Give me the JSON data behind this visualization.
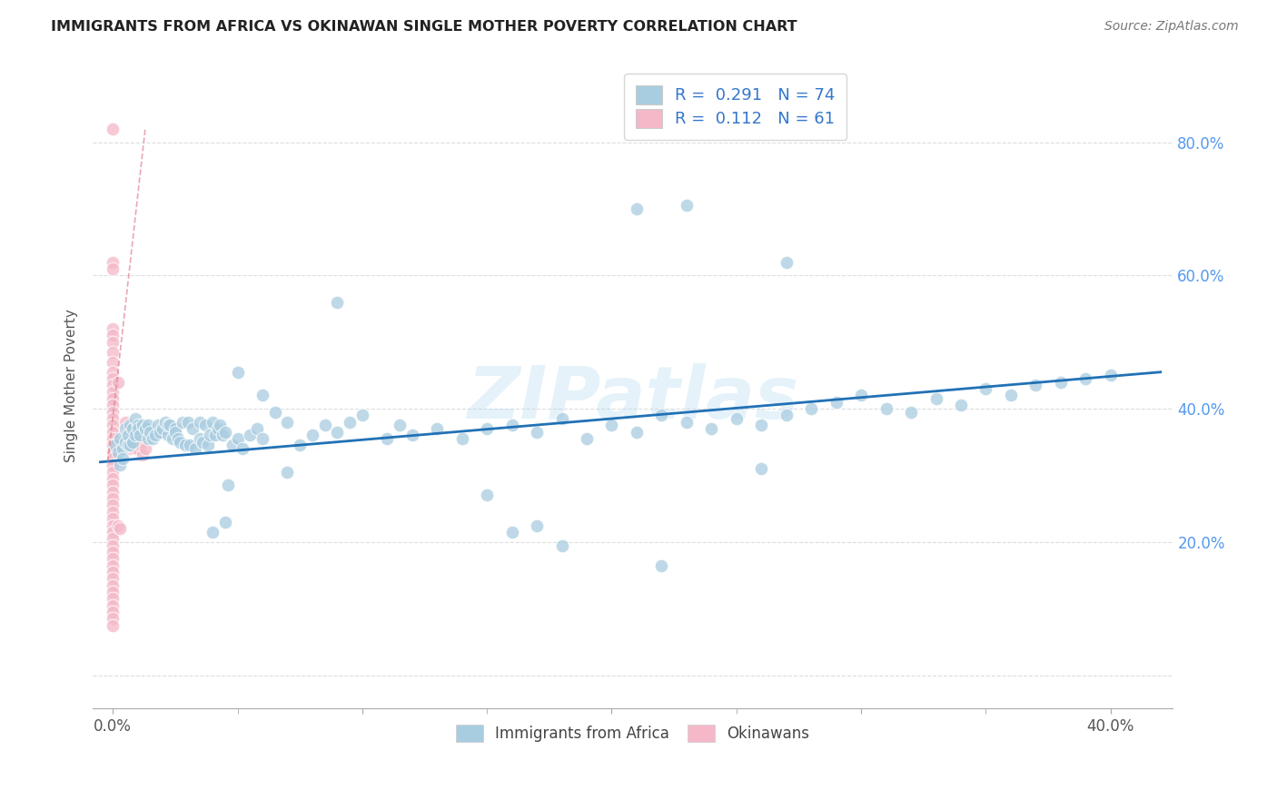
{
  "title": "IMMIGRANTS FROM AFRICA VS OKINAWAN SINGLE MOTHER POVERTY CORRELATION CHART",
  "source": "Source: ZipAtlas.com",
  "ylabel": "Single Mother Poverty",
  "blue_color": "#a8cce0",
  "pink_color": "#f4b8c8",
  "trendline_blue": "#2171b5",
  "trendline_pink": "#e08090",
  "watermark": "ZIPatlas",
  "blue_scatter": [
    [
      0.001,
      0.345
    ],
    [
      0.002,
      0.335
    ],
    [
      0.003,
      0.355
    ],
    [
      0.003,
      0.315
    ],
    [
      0.004,
      0.34
    ],
    [
      0.004,
      0.325
    ],
    [
      0.005,
      0.37
    ],
    [
      0.005,
      0.35
    ],
    [
      0.006,
      0.345
    ],
    [
      0.006,
      0.36
    ],
    [
      0.007,
      0.375
    ],
    [
      0.007,
      0.345
    ],
    [
      0.008,
      0.35
    ],
    [
      0.008,
      0.37
    ],
    [
      0.009,
      0.36
    ],
    [
      0.009,
      0.385
    ],
    [
      0.01,
      0.375
    ],
    [
      0.01,
      0.37
    ],
    [
      0.011,
      0.36
    ],
    [
      0.012,
      0.375
    ],
    [
      0.013,
      0.37
    ],
    [
      0.014,
      0.355
    ],
    [
      0.014,
      0.375
    ],
    [
      0.015,
      0.365
    ],
    [
      0.016,
      0.355
    ],
    [
      0.017,
      0.36
    ],
    [
      0.018,
      0.375
    ],
    [
      0.019,
      0.365
    ],
    [
      0.02,
      0.37
    ],
    [
      0.021,
      0.38
    ],
    [
      0.022,
      0.36
    ],
    [
      0.022,
      0.375
    ],
    [
      0.023,
      0.375
    ],
    [
      0.024,
      0.355
    ],
    [
      0.025,
      0.37
    ],
    [
      0.025,
      0.365
    ],
    [
      0.026,
      0.355
    ],
    [
      0.027,
      0.35
    ],
    [
      0.028,
      0.38
    ],
    [
      0.029,
      0.345
    ],
    [
      0.03,
      0.38
    ],
    [
      0.031,
      0.345
    ],
    [
      0.032,
      0.37
    ],
    [
      0.033,
      0.34
    ],
    [
      0.035,
      0.355
    ],
    [
      0.035,
      0.38
    ],
    [
      0.036,
      0.35
    ],
    [
      0.037,
      0.375
    ],
    [
      0.038,
      0.345
    ],
    [
      0.039,
      0.36
    ],
    [
      0.04,
      0.38
    ],
    [
      0.041,
      0.36
    ],
    [
      0.042,
      0.37
    ],
    [
      0.043,
      0.375
    ],
    [
      0.044,
      0.36
    ],
    [
      0.045,
      0.365
    ],
    [
      0.048,
      0.345
    ],
    [
      0.05,
      0.355
    ],
    [
      0.052,
      0.34
    ],
    [
      0.055,
      0.36
    ],
    [
      0.058,
      0.37
    ],
    [
      0.06,
      0.355
    ],
    [
      0.065,
      0.395
    ],
    [
      0.07,
      0.38
    ],
    [
      0.075,
      0.345
    ],
    [
      0.08,
      0.36
    ],
    [
      0.085,
      0.375
    ],
    [
      0.09,
      0.365
    ],
    [
      0.095,
      0.38
    ],
    [
      0.1,
      0.39
    ],
    [
      0.11,
      0.355
    ],
    [
      0.115,
      0.375
    ],
    [
      0.12,
      0.36
    ],
    [
      0.13,
      0.37
    ],
    [
      0.14,
      0.355
    ],
    [
      0.15,
      0.37
    ],
    [
      0.16,
      0.375
    ],
    [
      0.17,
      0.365
    ],
    [
      0.18,
      0.385
    ],
    [
      0.19,
      0.355
    ],
    [
      0.2,
      0.375
    ],
    [
      0.21,
      0.365
    ],
    [
      0.22,
      0.39
    ],
    [
      0.23,
      0.38
    ],
    [
      0.24,
      0.37
    ],
    [
      0.25,
      0.385
    ],
    [
      0.26,
      0.375
    ],
    [
      0.27,
      0.39
    ],
    [
      0.28,
      0.4
    ],
    [
      0.29,
      0.41
    ],
    [
      0.3,
      0.42
    ],
    [
      0.31,
      0.4
    ],
    [
      0.32,
      0.395
    ],
    [
      0.33,
      0.415
    ],
    [
      0.34,
      0.405
    ],
    [
      0.35,
      0.43
    ],
    [
      0.36,
      0.42
    ],
    [
      0.37,
      0.435
    ],
    [
      0.38,
      0.44
    ],
    [
      0.39,
      0.445
    ],
    [
      0.4,
      0.45
    ],
    [
      0.05,
      0.455
    ],
    [
      0.09,
      0.56
    ],
    [
      0.15,
      0.27
    ],
    [
      0.16,
      0.215
    ],
    [
      0.17,
      0.225
    ],
    [
      0.18,
      0.195
    ],
    [
      0.22,
      0.165
    ],
    [
      0.26,
      0.31
    ],
    [
      0.27,
      0.62
    ],
    [
      0.23,
      0.705
    ],
    [
      0.21,
      0.7
    ],
    [
      0.04,
      0.215
    ],
    [
      0.045,
      0.23
    ],
    [
      0.046,
      0.285
    ],
    [
      0.06,
      0.42
    ],
    [
      0.07,
      0.305
    ]
  ],
  "pink_scatter": [
    [
      0.0,
      0.82
    ],
    [
      0.0,
      0.62
    ],
    [
      0.0,
      0.61
    ],
    [
      0.0,
      0.52
    ],
    [
      0.0,
      0.51
    ],
    [
      0.0,
      0.5
    ],
    [
      0.0,
      0.485
    ],
    [
      0.0,
      0.47
    ],
    [
      0.0,
      0.455
    ],
    [
      0.0,
      0.445
    ],
    [
      0.0,
      0.435
    ],
    [
      0.0,
      0.425
    ],
    [
      0.0,
      0.415
    ],
    [
      0.0,
      0.405
    ],
    [
      0.0,
      0.395
    ],
    [
      0.0,
      0.385
    ],
    [
      0.0,
      0.375
    ],
    [
      0.0,
      0.365
    ],
    [
      0.0,
      0.355
    ],
    [
      0.0,
      0.345
    ],
    [
      0.0,
      0.335
    ],
    [
      0.0,
      0.325
    ],
    [
      0.0,
      0.315
    ],
    [
      0.0,
      0.305
    ],
    [
      0.0,
      0.295
    ],
    [
      0.0,
      0.285
    ],
    [
      0.0,
      0.275
    ],
    [
      0.0,
      0.265
    ],
    [
      0.0,
      0.255
    ],
    [
      0.0,
      0.245
    ],
    [
      0.0,
      0.235
    ],
    [
      0.0,
      0.225
    ],
    [
      0.0,
      0.215
    ],
    [
      0.0,
      0.205
    ],
    [
      0.0,
      0.195
    ],
    [
      0.0,
      0.185
    ],
    [
      0.0,
      0.175
    ],
    [
      0.0,
      0.165
    ],
    [
      0.0,
      0.155
    ],
    [
      0.0,
      0.145
    ],
    [
      0.0,
      0.135
    ],
    [
      0.0,
      0.125
    ],
    [
      0.0,
      0.115
    ],
    [
      0.0,
      0.105
    ],
    [
      0.0,
      0.095
    ],
    [
      0.0,
      0.085
    ],
    [
      0.0,
      0.075
    ],
    [
      0.002,
      0.44
    ],
    [
      0.002,
      0.225
    ],
    [
      0.003,
      0.22
    ],
    [
      0.004,
      0.35
    ],
    [
      0.005,
      0.38
    ],
    [
      0.006,
      0.35
    ],
    [
      0.007,
      0.34
    ],
    [
      0.008,
      0.36
    ],
    [
      0.009,
      0.34
    ],
    [
      0.01,
      0.34
    ],
    [
      0.011,
      0.345
    ],
    [
      0.012,
      0.33
    ],
    [
      0.013,
      0.34
    ]
  ],
  "blue_trend_x": [
    -0.005,
    0.42
  ],
  "blue_trend_y": [
    0.32,
    0.455
  ],
  "pink_trend_x": [
    -0.002,
    0.013
  ],
  "pink_trend_y": [
    0.32,
    0.82
  ],
  "xlim": [
    -0.008,
    0.425
  ],
  "ylim": [
    -0.05,
    0.92
  ],
  "xtick_positions": [
    0.0,
    0.1,
    0.2,
    0.3,
    0.4
  ],
  "xtick_labels_show": [
    "0.0%",
    "",
    "",
    "",
    "40.0%"
  ],
  "ytick_positions": [
    0.0,
    0.2,
    0.4,
    0.6,
    0.8
  ],
  "grid_color": "#dddddd",
  "bg_color": "#ffffff"
}
